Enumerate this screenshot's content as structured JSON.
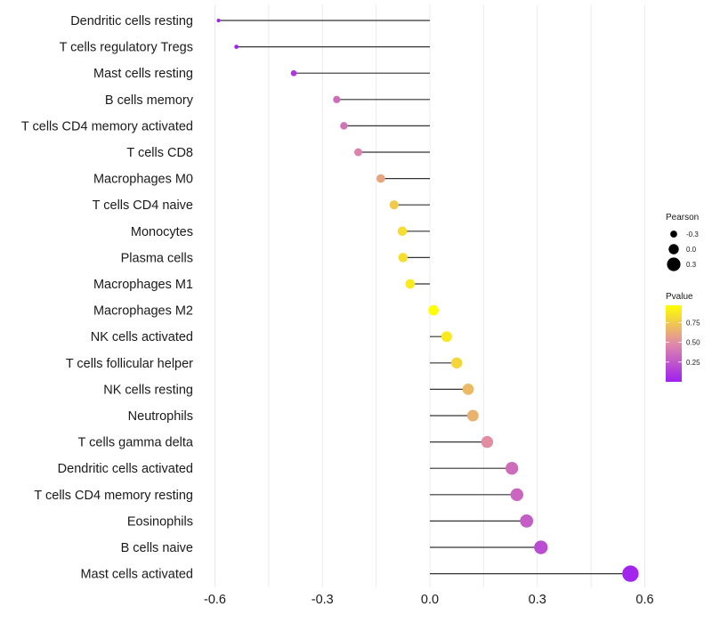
{
  "chart_data": {
    "type": "lollipop",
    "title": "",
    "xlabel": "",
    "ylabel": "",
    "xlim": [
      -0.62,
      0.6
    ],
    "x_ticks": [
      -0.6,
      -0.3,
      0.0,
      0.3,
      0.6
    ],
    "x_tick_labels": [
      "-0.6",
      "-0.3",
      "0.0",
      "0.3",
      "0.6"
    ],
    "grid": true,
    "categories": [
      "Dendritic cells resting",
      "T cells regulatory  Tregs ",
      "Mast cells resting",
      "B cells memory",
      "T cells CD4 memory activated",
      "T cells CD8",
      "Macrophages M0",
      "T cells CD4 naive",
      "Monocytes",
      "Plasma cells",
      "Macrophages M1",
      "Macrophages M2",
      "NK cells activated",
      "T cells follicular helper",
      "NK cells resting",
      "Neutrophils",
      "T cells gamma delta",
      "Dendritic cells activated",
      "T cells CD4 memory resting",
      "Eosinophils",
      "B cells naive",
      "Mast cells activated"
    ],
    "values": [
      -0.59,
      -0.54,
      -0.38,
      -0.26,
      -0.24,
      -0.2,
      -0.137,
      -0.1,
      -0.077,
      -0.075,
      -0.055,
      0.01,
      0.047,
      0.075,
      0.107,
      0.12,
      0.16,
      0.229,
      0.243,
      0.27,
      0.31,
      0.56
    ],
    "pvalues": [
      0.005,
      0.01,
      0.1,
      0.35,
      0.38,
      0.45,
      0.6,
      0.75,
      0.83,
      0.83,
      0.88,
      0.97,
      0.88,
      0.8,
      0.68,
      0.65,
      0.5,
      0.35,
      0.32,
      0.28,
      0.2,
      0.02
    ],
    "size_legend": {
      "title": "Pearson",
      "labels": [
        "-0.3",
        "0.0",
        "0.3"
      ],
      "values": [
        -0.3,
        0.0,
        0.3
      ]
    },
    "color_legend": {
      "title": "Pvalue",
      "labels": [
        "0.75",
        "0.50",
        "0.25"
      ],
      "values": [
        0.75,
        0.5,
        0.25
      ],
      "range": [
        0.0,
        0.97
      ],
      "low_color": "#A020F0",
      "mid_color": "#E08AA8",
      "high_color": "#FFFF00"
    },
    "legend_position": "right"
  }
}
